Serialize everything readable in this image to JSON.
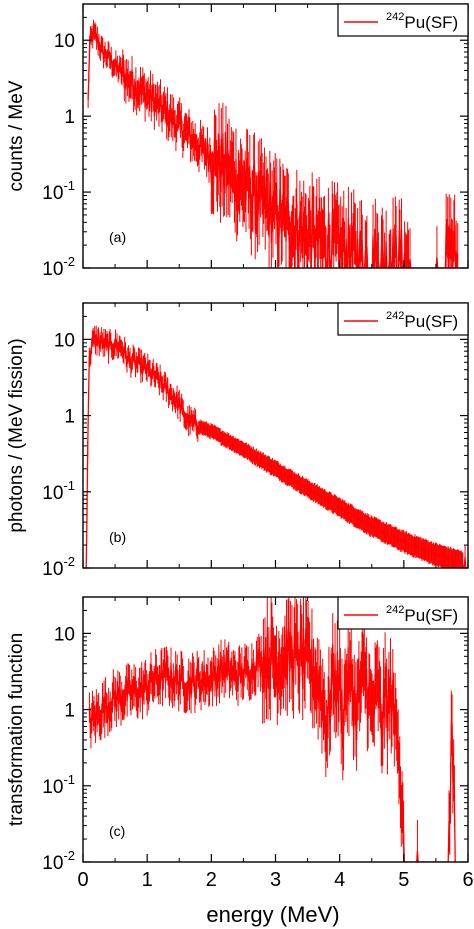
{
  "figure": {
    "xlabel": "energy (MeV)",
    "series_color": "#ff0000",
    "x_ticks": [
      "0",
      "1",
      "2",
      "3",
      "4",
      "5",
      "6"
    ]
  },
  "chart_data": [
    {
      "type": "line",
      "panel_label": "(a)",
      "ylabel": "counts / MeV",
      "yscale": "log",
      "xlim": [
        0,
        6
      ],
      "ylim": [
        0.01,
        30
      ],
      "y_ticks": [
        "10",
        "1",
        "10-1",
        "10-2"
      ],
      "legend": {
        "placement": "top-right",
        "nuclide_mass": "242",
        "label": "Pu(SF)"
      },
      "series": [
        {
          "x": [
            0.08,
            0.1,
            0.15,
            0.2,
            0.25,
            0.3,
            0.4,
            0.5,
            0.6,
            0.7,
            0.8,
            0.9,
            1.0,
            1.1,
            1.2,
            1.3,
            1.4,
            1.5,
            1.6,
            1.7,
            1.8,
            1.9,
            2.0,
            2.1,
            2.2,
            2.3,
            2.4,
            2.5,
            2.6,
            2.7,
            2.8,
            2.9,
            3.0,
            3.1,
            3.2,
            3.3,
            3.4,
            3.5,
            3.6,
            3.7,
            3.8,
            3.9,
            4.0,
            4.1,
            4.2,
            4.3,
            4.4,
            4.5,
            4.6,
            4.7,
            4.8,
            5.0,
            5.2,
            5.4,
            5.6,
            5.75,
            5.85
          ],
          "y": [
            1.5,
            8,
            12,
            11,
            9,
            7,
            6,
            4.5,
            3.8,
            3,
            2.6,
            2.2,
            1.9,
            1.6,
            1.3,
            1.1,
            0.9,
            0.75,
            0.62,
            0.5,
            0.4,
            0.35,
            0.3,
            0.25,
            0.21,
            0.18,
            0.15,
            0.12,
            0.1,
            0.085,
            0.07,
            0.06,
            0.05,
            0.045,
            0.04,
            0.035,
            0.03,
            0.028,
            0.025,
            0.023,
            0.022,
            0.02,
            0.019,
            0.017,
            0.016,
            0.015,
            0.014,
            0.013,
            0.014,
            0.012,
            0.015,
            0.012,
            0.011,
            0.011,
            0.011,
            0.02,
            0.011
          ]
        }
      ]
    },
    {
      "type": "line",
      "panel_label": "(b)",
      "ylabel": "photons / (MeV fission)",
      "yscale": "log",
      "xlim": [
        0,
        6
      ],
      "ylim": [
        0.01,
        30
      ],
      "y_ticks": [
        "10",
        "1",
        "10-1",
        "10-2"
      ],
      "legend": {
        "placement": "top-right",
        "nuclide_mass": "242",
        "label": "Pu(SF)"
      },
      "series": [
        {
          "x": [
            0.05,
            0.08,
            0.1,
            0.15,
            0.2,
            0.3,
            0.4,
            0.5,
            0.6,
            0.7,
            0.8,
            0.9,
            1.0,
            1.1,
            1.2,
            1.3,
            1.4,
            1.5,
            1.6,
            1.7,
            1.8,
            2.0,
            2.5,
            3.0,
            3.5,
            4.0,
            4.5,
            5.0,
            5.5,
            6.0
          ],
          "y": [
            0.01,
            1.0,
            6,
            9,
            10,
            9,
            8,
            8.5,
            8,
            5.5,
            5,
            4.5,
            4,
            3.3,
            2.8,
            2.2,
            1.8,
            1.4,
            0.9,
            0.8,
            0.72,
            0.62,
            0.36,
            0.2,
            0.11,
            0.062,
            0.035,
            0.022,
            0.015,
            0.011
          ]
        }
      ]
    },
    {
      "type": "line",
      "panel_label": "(c)",
      "ylabel": "transformation function",
      "yscale": "log",
      "xlim": [
        0,
        6
      ],
      "ylim": [
        0.01,
        30
      ],
      "y_ticks": [
        "10",
        "1",
        "10-1",
        "10-2"
      ],
      "legend": {
        "placement": "top-right",
        "nuclide_mass": "242",
        "label": "Pu(SF)"
      },
      "series": [
        {
          "x": [
            0.1,
            0.2,
            0.3,
            0.4,
            0.5,
            0.6,
            0.7,
            0.8,
            0.9,
            1.0,
            1.1,
            1.2,
            1.3,
            1.4,
            1.5,
            1.6,
            1.7,
            1.8,
            1.9,
            2.0,
            2.1,
            2.2,
            2.3,
            2.4,
            2.5,
            2.6,
            2.7,
            2.8,
            2.9,
            3.0,
            3.1,
            3.2,
            3.3,
            3.4,
            3.5,
            3.6,
            3.7,
            3.75,
            3.8,
            3.9,
            4.0,
            4.05,
            4.1,
            4.2,
            4.25,
            4.3,
            4.4,
            4.5,
            4.6,
            4.65,
            4.7,
            4.75,
            4.8,
            4.85,
            4.9,
            5.0,
            5.1,
            5.5,
            5.7,
            5.75,
            5.8
          ],
          "y": [
            0.7,
            0.8,
            1.0,
            1.2,
            1.4,
            1.5,
            1.6,
            1.7,
            1.8,
            2.0,
            2.4,
            2.6,
            2.8,
            2.5,
            2.4,
            2.2,
            2.3,
            2.4,
            2.5,
            2.6,
            3.0,
            3.5,
            3.0,
            2.8,
            3.0,
            3.3,
            4.0,
            4.5,
            5.0,
            4.2,
            4.8,
            5.5,
            5.0,
            4.5,
            4.0,
            3.0,
            2.0,
            1.2,
            0.6,
            3.0,
            2.0,
            0.7,
            2.5,
            2.0,
            0.9,
            1.5,
            3.0,
            0.8,
            2.0,
            0.5,
            1.6,
            0.9,
            1.8,
            0.6,
            1.0,
            0.011,
            0.011,
            0.011,
            0.011,
            1.0,
            0.011
          ]
        }
      ]
    }
  ]
}
